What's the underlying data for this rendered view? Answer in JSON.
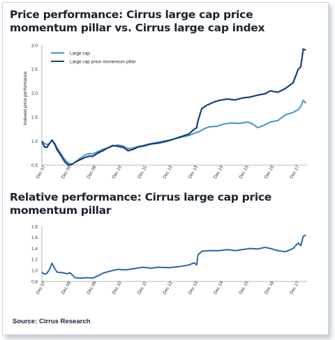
{
  "source": "Source: Cirrus Research",
  "colors": {
    "large_cap": "#4a90c8",
    "momentum": "#163f7a",
    "relative": "#2a67a8",
    "axis": "#9aa3ad"
  },
  "chart_data": [
    {
      "type": "line",
      "title": "Price performance: Cirrus large cap price momentum pillar vs. Cirrus large cap index",
      "ylabel": "Indexed price performance",
      "xlabel": "",
      "ylim": [
        0.5,
        3.0
      ],
      "yticks": [
        "3.0",
        "2.5",
        "2.0",
        "1.5",
        "1.0",
        "0.5"
      ],
      "xticks": [
        "Dec 07",
        "Dec 08",
        "Dec 09",
        "Dec 10",
        "Dec 11",
        "Dec 12",
        "Dec 13",
        "Dec 14",
        "Dec 15",
        "Dec 16",
        "Dec 17"
      ],
      "legend": "top-left",
      "series": [
        {
          "name": "Large cap",
          "color": "#4a90c8",
          "points": [
            [
              0,
              1.0
            ],
            [
              0.1,
              0.95
            ],
            [
              0.2,
              0.93
            ],
            [
              0.3,
              0.95
            ],
            [
              0.4,
              1.02
            ],
            [
              0.5,
              0.96
            ],
            [
              0.6,
              0.86
            ],
            [
              0.75,
              0.74
            ],
            [
              0.9,
              0.62
            ],
            [
              1.0,
              0.56
            ],
            [
              1.1,
              0.53
            ],
            [
              1.2,
              0.52
            ],
            [
              1.3,
              0.56
            ],
            [
              1.5,
              0.64
            ],
            [
              1.7,
              0.71
            ],
            [
              1.9,
              0.74
            ],
            [
              2.0,
              0.73
            ],
            [
              2.2,
              0.78
            ],
            [
              2.4,
              0.83
            ],
            [
              2.6,
              0.86
            ],
            [
              2.8,
              0.9
            ],
            [
              3.0,
              0.92
            ],
            [
              3.2,
              0.9
            ],
            [
              3.4,
              0.84
            ],
            [
              3.6,
              0.86
            ],
            [
              3.8,
              0.89
            ],
            [
              4.0,
              0.91
            ],
            [
              4.3,
              0.95
            ],
            [
              4.6,
              0.98
            ],
            [
              5.0,
              1.02
            ],
            [
              5.4,
              1.07
            ],
            [
              5.8,
              1.12
            ],
            [
              6.2,
              1.2
            ],
            [
              6.4,
              1.26
            ],
            [
              6.6,
              1.3
            ],
            [
              6.9,
              1.31
            ],
            [
              7.2,
              1.36
            ],
            [
              7.5,
              1.38
            ],
            [
              7.8,
              1.37
            ],
            [
              8.1,
              1.4
            ],
            [
              8.3,
              1.36
            ],
            [
              8.5,
              1.28
            ],
            [
              8.7,
              1.32
            ],
            [
              9.0,
              1.4
            ],
            [
              9.3,
              1.43
            ],
            [
              9.6,
              1.55
            ],
            [
              9.9,
              1.6
            ],
            [
              10.1,
              1.66
            ],
            [
              10.2,
              1.72
            ],
            [
              10.3,
              1.85
            ],
            [
              10.4,
              1.79
            ]
          ]
        },
        {
          "name": "Large cap price momentum pillar",
          "color": "#163f7a",
          "points": [
            [
              0,
              1.0
            ],
            [
              0.1,
              0.88
            ],
            [
              0.2,
              0.87
            ],
            [
              0.3,
              0.95
            ],
            [
              0.4,
              1.02
            ],
            [
              0.5,
              0.94
            ],
            [
              0.6,
              0.82
            ],
            [
              0.75,
              0.7
            ],
            [
              0.9,
              0.57
            ],
            [
              1.0,
              0.52
            ],
            [
              1.1,
              0.5
            ],
            [
              1.2,
              0.52
            ],
            [
              1.3,
              0.56
            ],
            [
              1.5,
              0.61
            ],
            [
              1.7,
              0.66
            ],
            [
              1.9,
              0.69
            ],
            [
              2.0,
              0.68
            ],
            [
              2.2,
              0.75
            ],
            [
              2.4,
              0.8
            ],
            [
              2.6,
              0.86
            ],
            [
              2.8,
              0.91
            ],
            [
              3.0,
              0.89
            ],
            [
              3.2,
              0.87
            ],
            [
              3.4,
              0.8
            ],
            [
              3.6,
              0.83
            ],
            [
              3.8,
              0.88
            ],
            [
              4.0,
              0.9
            ],
            [
              4.3,
              0.94
            ],
            [
              4.6,
              0.96
            ],
            [
              5.0,
              1.01
            ],
            [
              5.4,
              1.08
            ],
            [
              5.8,
              1.15
            ],
            [
              6.0,
              1.25
            ],
            [
              6.1,
              1.28
            ],
            [
              6.15,
              1.42
            ],
            [
              6.3,
              1.68
            ],
            [
              6.5,
              1.75
            ],
            [
              6.8,
              1.82
            ],
            [
              7.0,
              1.85
            ],
            [
              7.3,
              1.88
            ],
            [
              7.6,
              1.86
            ],
            [
              7.9,
              1.9
            ],
            [
              8.2,
              1.92
            ],
            [
              8.5,
              1.96
            ],
            [
              8.8,
              1.99
            ],
            [
              9.0,
              2.05
            ],
            [
              9.3,
              2.02
            ],
            [
              9.6,
              2.1
            ],
            [
              9.9,
              2.22
            ],
            [
              10.1,
              2.5
            ],
            [
              10.2,
              2.55
            ],
            [
              10.3,
              2.92
            ],
            [
              10.4,
              2.9
            ]
          ]
        }
      ]
    },
    {
      "type": "line",
      "title": "Relative performance: Cirrus large cap price momentum pillar",
      "xlabel": "",
      "ylabel": "",
      "ylim": [
        0.8,
        1.8
      ],
      "yticks": [
        "1.8",
        "1.6",
        "1.4",
        "1.2",
        "1.0",
        "0.8"
      ],
      "xticks": [
        "Dec 07",
        "Dec 08",
        "Dec 09",
        "Dec 10",
        "Dec 11",
        "Dec 12",
        "Dec 13",
        "Dec 14",
        "Dec 15",
        "Dec 16",
        "Dec 17"
      ],
      "series": [
        {
          "color": "#2a67a8",
          "points": [
            [
              0,
              0.97
            ],
            [
              0.1,
              0.93
            ],
            [
              0.2,
              0.95
            ],
            [
              0.3,
              1.02
            ],
            [
              0.4,
              1.13
            ],
            [
              0.5,
              1.04
            ],
            [
              0.6,
              0.97
            ],
            [
              0.8,
              0.96
            ],
            [
              1.0,
              0.94
            ],
            [
              1.1,
              0.96
            ],
            [
              1.2,
              0.92
            ],
            [
              1.3,
              0.87
            ],
            [
              1.5,
              0.86
            ],
            [
              1.8,
              0.87
            ],
            [
              2.0,
              0.86
            ],
            [
              2.2,
              0.9
            ],
            [
              2.4,
              0.95
            ],
            [
              2.7,
              0.99
            ],
            [
              3.0,
              1.02
            ],
            [
              3.3,
              1.01
            ],
            [
              3.6,
              1.03
            ],
            [
              4.0,
              1.06
            ],
            [
              4.3,
              1.04
            ],
            [
              4.6,
              1.06
            ],
            [
              5.0,
              1.05
            ],
            [
              5.4,
              1.07
            ],
            [
              5.8,
              1.1
            ],
            [
              6.0,
              1.14
            ],
            [
              6.1,
              1.1
            ],
            [
              6.15,
              1.28
            ],
            [
              6.3,
              1.35
            ],
            [
              6.6,
              1.36
            ],
            [
              7.0,
              1.36
            ],
            [
              7.3,
              1.38
            ],
            [
              7.6,
              1.36
            ],
            [
              7.9,
              1.38
            ],
            [
              8.2,
              1.4
            ],
            [
              8.5,
              1.39
            ],
            [
              8.8,
              1.42
            ],
            [
              9.0,
              1.4
            ],
            [
              9.3,
              1.36
            ],
            [
              9.6,
              1.34
            ],
            [
              9.9,
              1.4
            ],
            [
              10.1,
              1.5
            ],
            [
              10.2,
              1.45
            ],
            [
              10.3,
              1.62
            ],
            [
              10.4,
              1.64
            ]
          ]
        }
      ]
    }
  ]
}
